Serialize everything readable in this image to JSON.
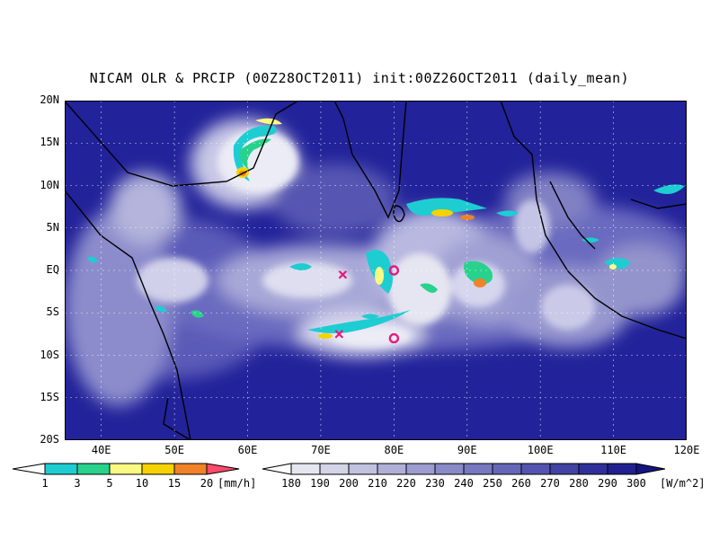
{
  "title": "NICAM OLR & PRCIP (00Z28OCT2011) init:00Z26OCT2011 (daily_mean)",
  "axes": {
    "lat_labels": [
      "20N",
      "15N",
      "10N",
      "5N",
      "EQ",
      "5S",
      "10S",
      "15S",
      "20S"
    ],
    "lon_labels": [
      "40E",
      "50E",
      "60E",
      "70E",
      "80E",
      "90E",
      "100E",
      "110E",
      "120E"
    ]
  },
  "precip_colorbar": {
    "labels": [
      "1",
      "3",
      "5",
      "10",
      "15",
      "20"
    ],
    "unit": "[mm/h]",
    "colors": [
      "#ffffff",
      "#1ecdd2",
      "#28d28c",
      "#fafa82",
      "#f5d200",
      "#f08228",
      "#ff4a6a"
    ]
  },
  "olr_colorbar": {
    "labels": [
      "180",
      "190",
      "200",
      "210",
      "220",
      "230",
      "240",
      "250",
      "260",
      "270",
      "280",
      "290",
      "300"
    ],
    "unit": "[W/m^2]",
    "colors": [
      "#ffffff",
      "#e6e6f0",
      "#d4d4e8",
      "#c1c1e0",
      "#afafd8",
      "#9c9cd0",
      "#8a8ac8",
      "#7878c0",
      "#6666b8",
      "#5454b0",
      "#4242a4",
      "#30309a",
      "#202090",
      "#141482"
    ]
  },
  "markers": [
    {
      "type": "x",
      "lon": 73,
      "lat": -0.5,
      "color": "#e6197d"
    },
    {
      "type": "x",
      "lon": 72.5,
      "lat": -7.5,
      "color": "#e6197d"
    },
    {
      "type": "o",
      "lon": 80,
      "lat": 0,
      "color": "#e6197d"
    },
    {
      "type": "o",
      "lon": 80,
      "lat": -8,
      "color": "#e6197d"
    }
  ]
}
